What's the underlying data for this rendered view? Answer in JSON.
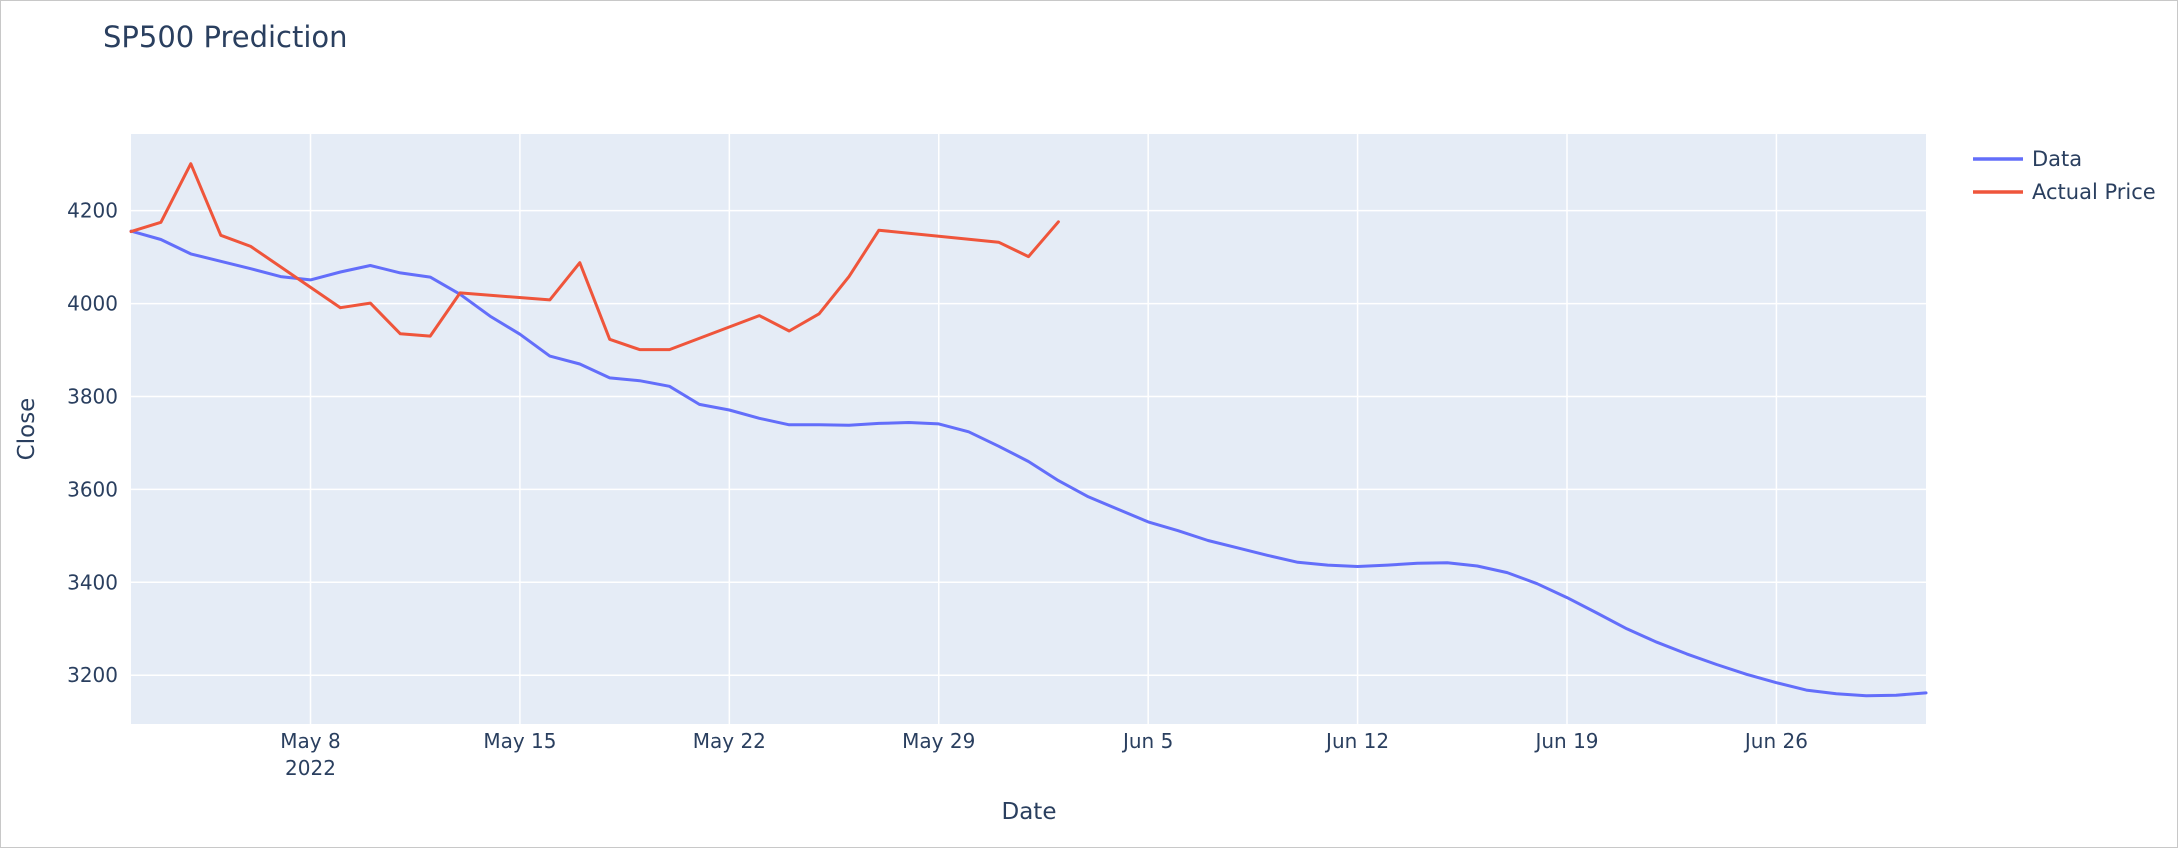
{
  "chart_data": {
    "type": "line",
    "title": "SP500 Prediction",
    "xlabel": "Date",
    "ylabel": "Close",
    "x_range": [
      "2022-05-02",
      "2022-07-01"
    ],
    "ylim": [
      3095,
      4365
    ],
    "y_ticks": [
      3200,
      3400,
      3600,
      3800,
      4000,
      4200
    ],
    "x_ticks": [
      {
        "date": "2022-05-08",
        "label": "May 8",
        "sublabel": "2022"
      },
      {
        "date": "2022-05-15",
        "label": "May 15",
        "sublabel": ""
      },
      {
        "date": "2022-05-22",
        "label": "May 22",
        "sublabel": ""
      },
      {
        "date": "2022-05-29",
        "label": "May 29",
        "sublabel": ""
      },
      {
        "date": "2022-06-05",
        "label": "Jun 5",
        "sublabel": ""
      },
      {
        "date": "2022-06-12",
        "label": "Jun 12",
        "sublabel": ""
      },
      {
        "date": "2022-06-19",
        "label": "Jun 19",
        "sublabel": ""
      },
      {
        "date": "2022-06-26",
        "label": "Jun 26",
        "sublabel": ""
      }
    ],
    "grid": true,
    "legend_position": "top-right",
    "colors": {
      "plot_bg": "#E5ECF6",
      "grid": "#FFFFFF",
      "text": "#2a3f5f"
    },
    "series": [
      {
        "name": "Data",
        "color": "#636EFA",
        "x": [
          "2022-05-02",
          "2022-05-03",
          "2022-05-04",
          "2022-05-05",
          "2022-05-06",
          "2022-05-07",
          "2022-05-08",
          "2022-05-09",
          "2022-05-10",
          "2022-05-11",
          "2022-05-12",
          "2022-05-13",
          "2022-05-14",
          "2022-05-15",
          "2022-05-16",
          "2022-05-17",
          "2022-05-18",
          "2022-05-19",
          "2022-05-20",
          "2022-05-21",
          "2022-05-22",
          "2022-05-23",
          "2022-05-24",
          "2022-05-25",
          "2022-05-26",
          "2022-05-27",
          "2022-05-28",
          "2022-05-29",
          "2022-05-30",
          "2022-05-31",
          "2022-06-01",
          "2022-06-02",
          "2022-06-03",
          "2022-06-04",
          "2022-06-05",
          "2022-06-06",
          "2022-06-07",
          "2022-06-08",
          "2022-06-09",
          "2022-06-10",
          "2022-06-11",
          "2022-06-12",
          "2022-06-13",
          "2022-06-14",
          "2022-06-15",
          "2022-06-16",
          "2022-06-17",
          "2022-06-18",
          "2022-06-19",
          "2022-06-20",
          "2022-06-21",
          "2022-06-22",
          "2022-06-23",
          "2022-06-24",
          "2022-06-25",
          "2022-06-26",
          "2022-06-27",
          "2022-06-28",
          "2022-06-29",
          "2022-06-30",
          "2022-07-01"
        ],
        "values": [
          4156,
          4138,
          4107,
          4091,
          4075,
          4058,
          4051,
          4068,
          4082,
          4066,
          4057,
          4020,
          3973,
          3934,
          3887,
          3870,
          3840,
          3834,
          3822,
          3783,
          3771,
          3753,
          3739,
          3739,
          3738,
          3742,
          3744,
          3741,
          3724,
          3693,
          3660,
          3619,
          3584,
          3557,
          3530,
          3511,
          3490,
          3474,
          3458,
          3443,
          3437,
          3434,
          3437,
          3441,
          3442,
          3435,
          3421,
          3397,
          3367,
          3334,
          3300,
          3271,
          3246,
          3223,
          3202,
          3184,
          3168,
          3160,
          3156,
          3157,
          3162
        ]
      },
      {
        "name": "Actual Price",
        "color": "#EF553B",
        "x": [
          "2022-05-02",
          "2022-05-03",
          "2022-05-04",
          "2022-05-05",
          "2022-05-06",
          "2022-05-09",
          "2022-05-10",
          "2022-05-11",
          "2022-05-12",
          "2022-05-13",
          "2022-05-16",
          "2022-05-17",
          "2022-05-18",
          "2022-05-19",
          "2022-05-20",
          "2022-05-23",
          "2022-05-24",
          "2022-05-25",
          "2022-05-26",
          "2022-05-27",
          "2022-05-31",
          "2022-06-01",
          "2022-06-02"
        ],
        "values": [
          4155,
          4175,
          4301,
          4147,
          4123,
          3991,
          4001,
          3935,
          3930,
          4023,
          4008,
          4088,
          3923,
          3901,
          3901,
          3974,
          3941,
          3978,
          4058,
          4158,
          4132,
          4101,
          4176
        ]
      }
    ]
  }
}
